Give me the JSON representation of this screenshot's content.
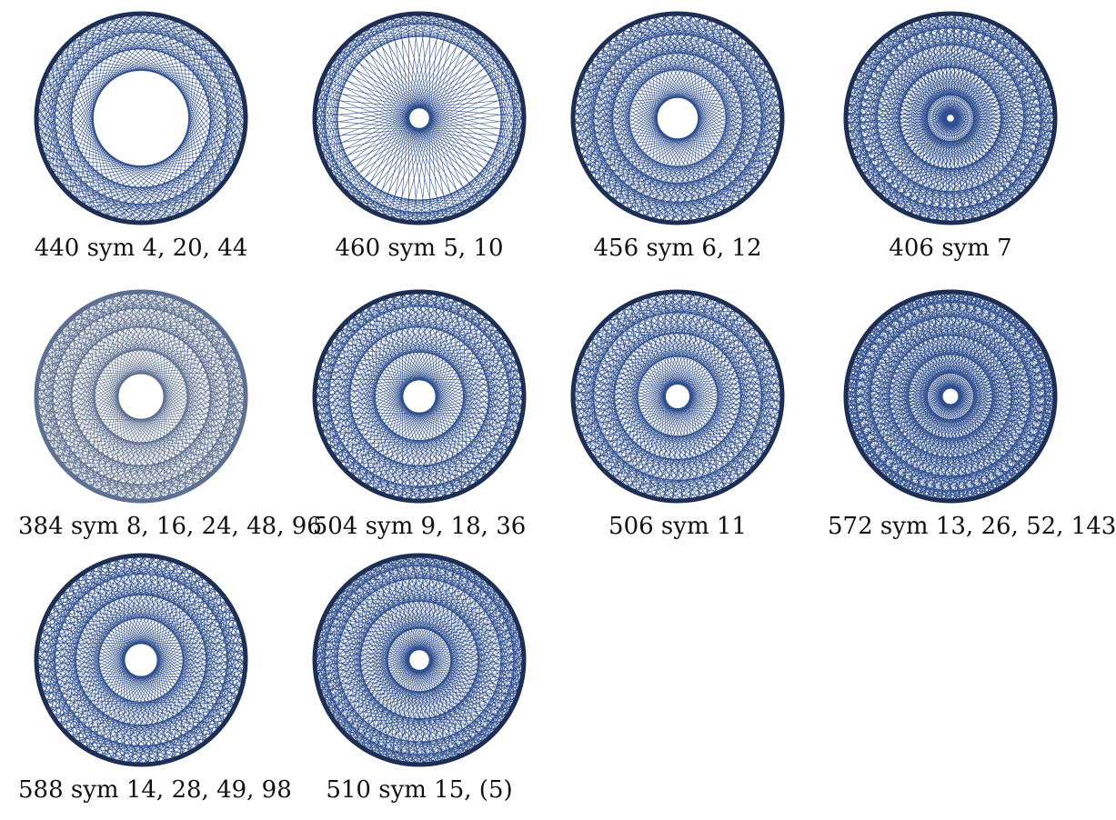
{
  "colors": {
    "chord": "#2f4f8f",
    "rim": "#1e2f55",
    "rim_light": "#5d6f92"
  },
  "figures": [
    {
      "caption": "440 sym 4, 20, 44",
      "hole": 0.46,
      "rings": [
        0.66,
        0.82
      ]
    },
    {
      "caption": "460 sym 5, 10",
      "hole": 0.1,
      "rings": [
        0.78,
        0.9
      ]
    },
    {
      "caption": "456 sym 6, 12",
      "hole": 0.2,
      "rings": [
        0.46,
        0.62,
        0.8
      ]
    },
    {
      "caption": "406 sym 7",
      "hole": 0.04,
      "rings": [
        0.22,
        0.48,
        0.7,
        0.86
      ]
    },
    {
      "caption": "384 sym 8, 16, 24, 48, 96",
      "hole": 0.22,
      "rings": [
        0.44,
        0.66,
        0.84
      ],
      "light": true
    },
    {
      "caption": "504 sym 9, 18, 36",
      "hole": 0.16,
      "rings": [
        0.42,
        0.66,
        0.86
      ]
    },
    {
      "caption": "506 sym 11",
      "hole": 0.12,
      "rings": [
        0.38,
        0.6,
        0.8
      ]
    },
    {
      "caption": "572 sym 13, 26, 52, 143",
      "hole": 0.08,
      "rings": [
        0.22,
        0.4,
        0.58,
        0.76,
        0.9
      ]
    },
    {
      "caption": "588 sym 14, 28, 49, 98",
      "hole": 0.16,
      "rings": [
        0.4,
        0.62,
        0.82
      ]
    },
    {
      "caption": "510 sym 15, (5)",
      "hole": 0.1,
      "rings": [
        0.3,
        0.56,
        0.78,
        0.9
      ]
    }
  ]
}
